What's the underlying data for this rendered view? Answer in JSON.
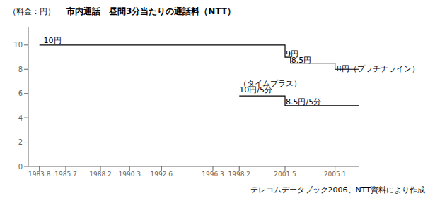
{
  "chart_data": {
    "type": "line",
    "title": "市内通話　昼間3分当たりの通話料（NTT）",
    "y_label": "（料金：円）",
    "footnote": "テレコムデータブック2006、NTT資料により作成",
    "xlim": [
      1983.0,
      2006.8
    ],
    "xticks": [
      1983.8,
      1985.7,
      1988.2,
      1990.3,
      1992.6,
      1996.3,
      1998.2,
      2001.5,
      2005.1
    ],
    "ylim": [
      0,
      11.5
    ],
    "yticks": [
      0,
      2,
      4,
      6,
      8,
      10
    ],
    "series": [
      {
        "color": "#000000",
        "x": [
          1983.8,
          2001.5,
          2001.5,
          2001.9,
          2001.9,
          2005.1,
          2005.1,
          2006.8
        ],
        "values": [
          10.0,
          10.0,
          9.0,
          9.0,
          8.5,
          8.5,
          8.0,
          8.0
        ],
        "annotations": [
          {
            "text": "10円",
            "x": 1984.1,
            "y": 10.15
          },
          {
            "text": "9円",
            "x": 2001.55,
            "y": 9.05
          },
          {
            "text": "8.5円",
            "x": 2001.95,
            "y": 8.55
          },
          {
            "text": "8円（プラチナライン）",
            "x": 2005.2,
            "y": 7.85
          }
        ]
      },
      {
        "color": "#000000",
        "x": [
          1998.2,
          2001.5,
          2001.5,
          2006.8
        ],
        "values": [
          5.8,
          5.8,
          5.0,
          5.0
        ],
        "annotations": [
          {
            "text": "（タイムプラス）",
            "x": 1998.2,
            "y": 6.6
          },
          {
            "text": "10円/5分",
            "x": 1998.2,
            "y": 6.1
          },
          {
            "text": "8.5円/5分",
            "x": 2001.55,
            "y": 5.1
          }
        ]
      }
    ]
  }
}
